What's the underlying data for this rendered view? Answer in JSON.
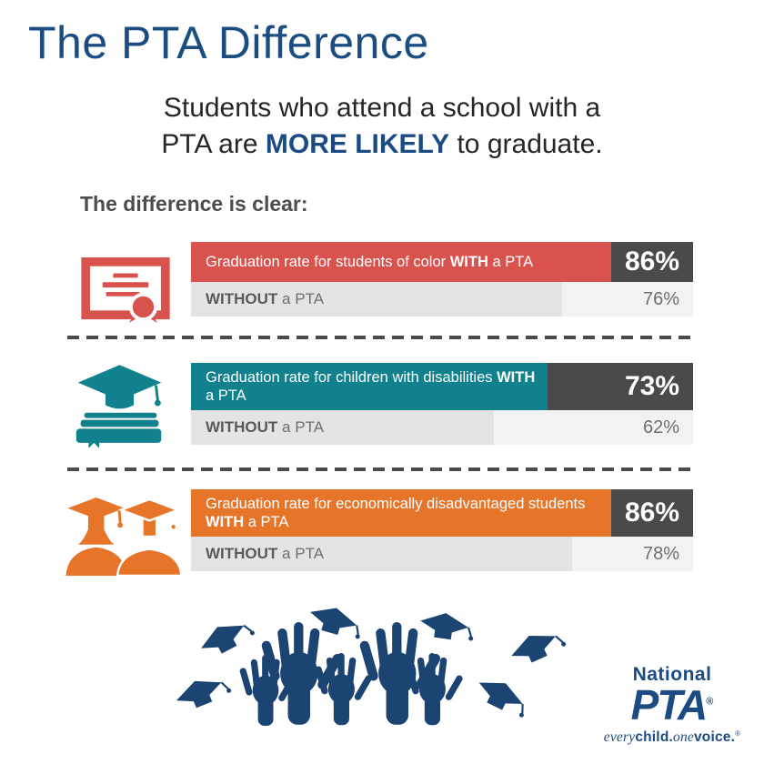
{
  "title": "The PTA Difference",
  "subtitle": {
    "line1": "Students who attend a school with a",
    "line2_pre": "PTA are ",
    "line2_bold": "MORE LIKELY",
    "line2_post": " to graduate."
  },
  "section_heading": "The difference is clear:",
  "colors": {
    "navy": "#1B4B82",
    "red": "#D9534E",
    "teal": "#12818E",
    "orange": "#E6752A",
    "value_box_dark": "#4A4A4A",
    "without_bar_gray": "#E4E4E4",
    "without_track_gray": "#F2F2F2"
  },
  "rows": [
    {
      "icon": "certificate-icon",
      "color": "#D9534E",
      "with_pre": "Graduation rate for students of color ",
      "with_bold": "WITH",
      "with_post": " a PTA",
      "with_value": "86%",
      "with_pct": 86,
      "without_bold": "WITHOUT",
      "without_post": " a PTA",
      "without_value": "76%",
      "without_pct": 76
    },
    {
      "icon": "grad-cap-books-icon",
      "color": "#12818E",
      "with_pre": "Graduation rate for children with disabilities ",
      "with_bold": "WITH",
      "with_post": " a PTA",
      "with_value": "73%",
      "with_pct": 73,
      "without_bold": "WITHOUT",
      "without_post": " a PTA",
      "without_value": "62%",
      "without_pct": 62
    },
    {
      "icon": "graduates-icon",
      "color": "#E6752A",
      "with_pre": "Graduation rate for economically disadvantaged students ",
      "with_bold": "WITH",
      "with_post": " a PTA",
      "with_value": "86%",
      "with_pct": 86,
      "without_bold": "WITHOUT",
      "without_post": " a PTA",
      "without_value": "78%",
      "without_pct": 78
    }
  ],
  "logo": {
    "brand_top": "National",
    "brand_main": "PTA",
    "registered": "®",
    "tagline_italic1": "every",
    "tagline_bold1": "child.",
    "tagline_italic2": "one",
    "tagline_bold2": "voice.",
    "tagline_reg": "®"
  },
  "chart_data": {
    "type": "bar",
    "title": "The PTA Difference",
    "subtitle": "Students who attend a school with a PTA are MORE LIKELY to graduate.",
    "annotation": "The difference is clear:",
    "categories": [
      "Students of color",
      "Children with disabilities",
      "Economically disadvantaged students"
    ],
    "series": [
      {
        "name": "Graduation rate WITH a PTA",
        "values": [
          86,
          73,
          86
        ]
      },
      {
        "name": "Graduation rate WITHOUT a PTA",
        "values": [
          76,
          62,
          78
        ]
      }
    ],
    "unit": "%",
    "xlim": [
      0,
      100
    ],
    "orientation": "horizontal",
    "grid": false,
    "legend_position": "in-bar-labels"
  }
}
